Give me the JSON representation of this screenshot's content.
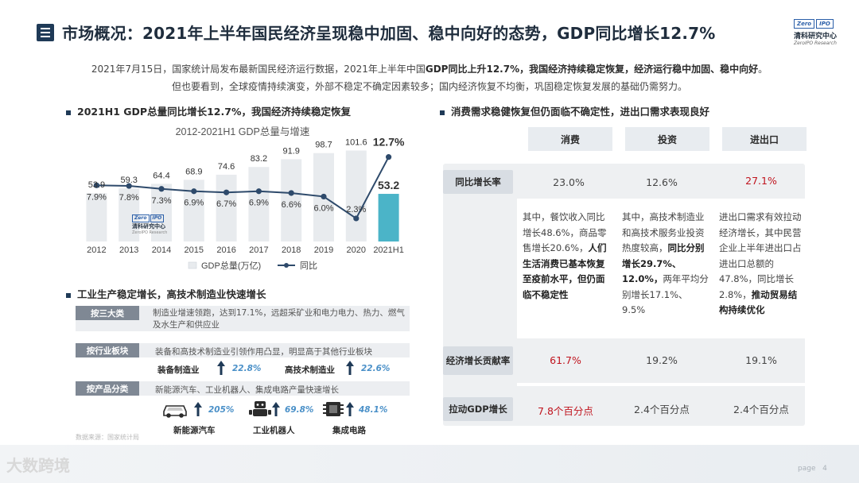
{
  "header": {
    "title": "市场概况：2021年上半年国民经济呈现稳中加固、稳中向好的态势，GDP同比增长12.7%",
    "logo": {
      "box1": "Zero",
      "box2": "IPO",
      "name": "清科研究中心",
      "sub": "ZeroIPO Research"
    }
  },
  "intro": {
    "line1_a": "2021年7月15日，国家统计局发布最新国民经济运行数据，2021年上半年中国",
    "line1_b": "GDP同比上升12.7%，我国经济持续稳定恢复，经济运行稳中加固、稳中向好",
    "line1_c": "。",
    "line2": "但也要看到，全球疫情持续演变，外部不稳定不确定因素较多；国内经济恢复不均衡，巩固稳定恢复发展的基础仍需努力。"
  },
  "left_section_title": "2021H1 GDP总量同比增长12.7%，我国经济持续稳定恢复",
  "chart_data": {
    "type": "bar",
    "title": "2012-2021H1 GDP总量与增速",
    "categories": [
      "2012",
      "2013",
      "2014",
      "2015",
      "2016",
      "2017",
      "2018",
      "2019",
      "2020",
      "2021H1"
    ],
    "series": [
      {
        "name": "GDP总量(万亿)",
        "type": "bar",
        "values": [
          53.9,
          59.3,
          64.4,
          68.9,
          74.6,
          83.2,
          91.9,
          98.7,
          101.6,
          53.2
        ],
        "value_labels": [
          "53.9",
          "59.3",
          "64.4",
          "68.9",
          "74.6",
          "83.2",
          "91.9",
          "98.7",
          "101.6",
          "53.2"
        ],
        "colors": {
          "bar": "#e8ebee",
          "highlight": "#4bb4c8"
        }
      },
      {
        "name": "同比",
        "type": "line",
        "values": [
          7.9,
          7.8,
          7.3,
          6.9,
          6.7,
          6.9,
          6.6,
          6.0,
          2.3,
          12.7
        ],
        "value_labels": [
          "7.9%",
          "7.8%",
          "7.3%",
          "6.9%",
          "6.7%",
          "6.9%",
          "6.6%",
          "6.0%",
          "2.3%",
          "12.7%"
        ],
        "color": "#2e4a6b"
      }
    ],
    "ylim_bar": [
      0,
      110
    ],
    "ylim_line": [
      0,
      14
    ],
    "legend": "bottom"
  },
  "industry": {
    "title": "工业生产稳定增长，高技术制造业快速增长",
    "rows": [
      {
        "tag": "按三大类",
        "text": "制造业增速领跑，达到17.1%，远超采矿业和电力电力、热力、燃气及水生产和供应业"
      },
      {
        "tag": "按行业板块",
        "text": "装备和高技术制造业引领作用凸显，明显高于其他行业板块"
      },
      {
        "tag": "按产品分类",
        "text": "新能源汽车、工业机器人、集成电路产量快速增长"
      }
    ],
    "sectors": [
      {
        "label": "装备制造业",
        "value": "22.8%"
      },
      {
        "label": "高技术制造业",
        "value": "22.6%"
      }
    ],
    "products": [
      {
        "label": "新能源汽车",
        "value": "205%",
        "icon": "car-icon"
      },
      {
        "label": "工业机器人",
        "value": "69.8%",
        "icon": "robot-icon"
      },
      {
        "label": "集成电路",
        "value": "48.1%",
        "icon": "chip-icon"
      }
    ],
    "source": "数据来源：国家统计局"
  },
  "demand": {
    "title": "消费需求稳健恢复但仍面临不确定性，进出口需求表现良好",
    "columns": [
      "消费",
      "投资",
      "进出口"
    ],
    "rows": [
      {
        "label": "同比增长率",
        "values": [
          "23.0%",
          "12.6%",
          "27.1%"
        ],
        "highlight_index": 2
      },
      {
        "label": "经济增长贡献率",
        "values": [
          "61.7%",
          "19.2%",
          "19.1%"
        ],
        "highlight_index": 0
      },
      {
        "label": "拉动GDP增长",
        "values": [
          "7.8个百分点",
          "2.4个百分点",
          "2.4个百分点"
        ],
        "highlight_index": 0
      }
    ],
    "desc": {
      "consumption_a": "其中，餐饮收入同比增长48.6%，商品零售增长20.6%，",
      "consumption_b": "人们生活消费已基本恢复至疫前水平，但仍面临不稳定性",
      "investment_a": "其中，高技术制造业和高技术服务业投资热度较高，",
      "investment_b": "同比分别增长29.7%、12.0%，",
      "investment_c": "两年平均分别增长17.1%、9.5%",
      "trade_a": "进出口需求有效拉动经济增长，其中民营企业上半年进出口占进出口总额的47.8%，同比增长2.8%，",
      "trade_b": "推动贸易结构持续优化"
    }
  },
  "footer": {
    "watermark": "大数跨境",
    "page_label": "page",
    "page_number": "4"
  },
  "colors": {
    "navy": "#1f3a57",
    "accent_blue": "#4a90c8",
    "teal": "#4bb4c8",
    "red": "#c0141e"
  }
}
